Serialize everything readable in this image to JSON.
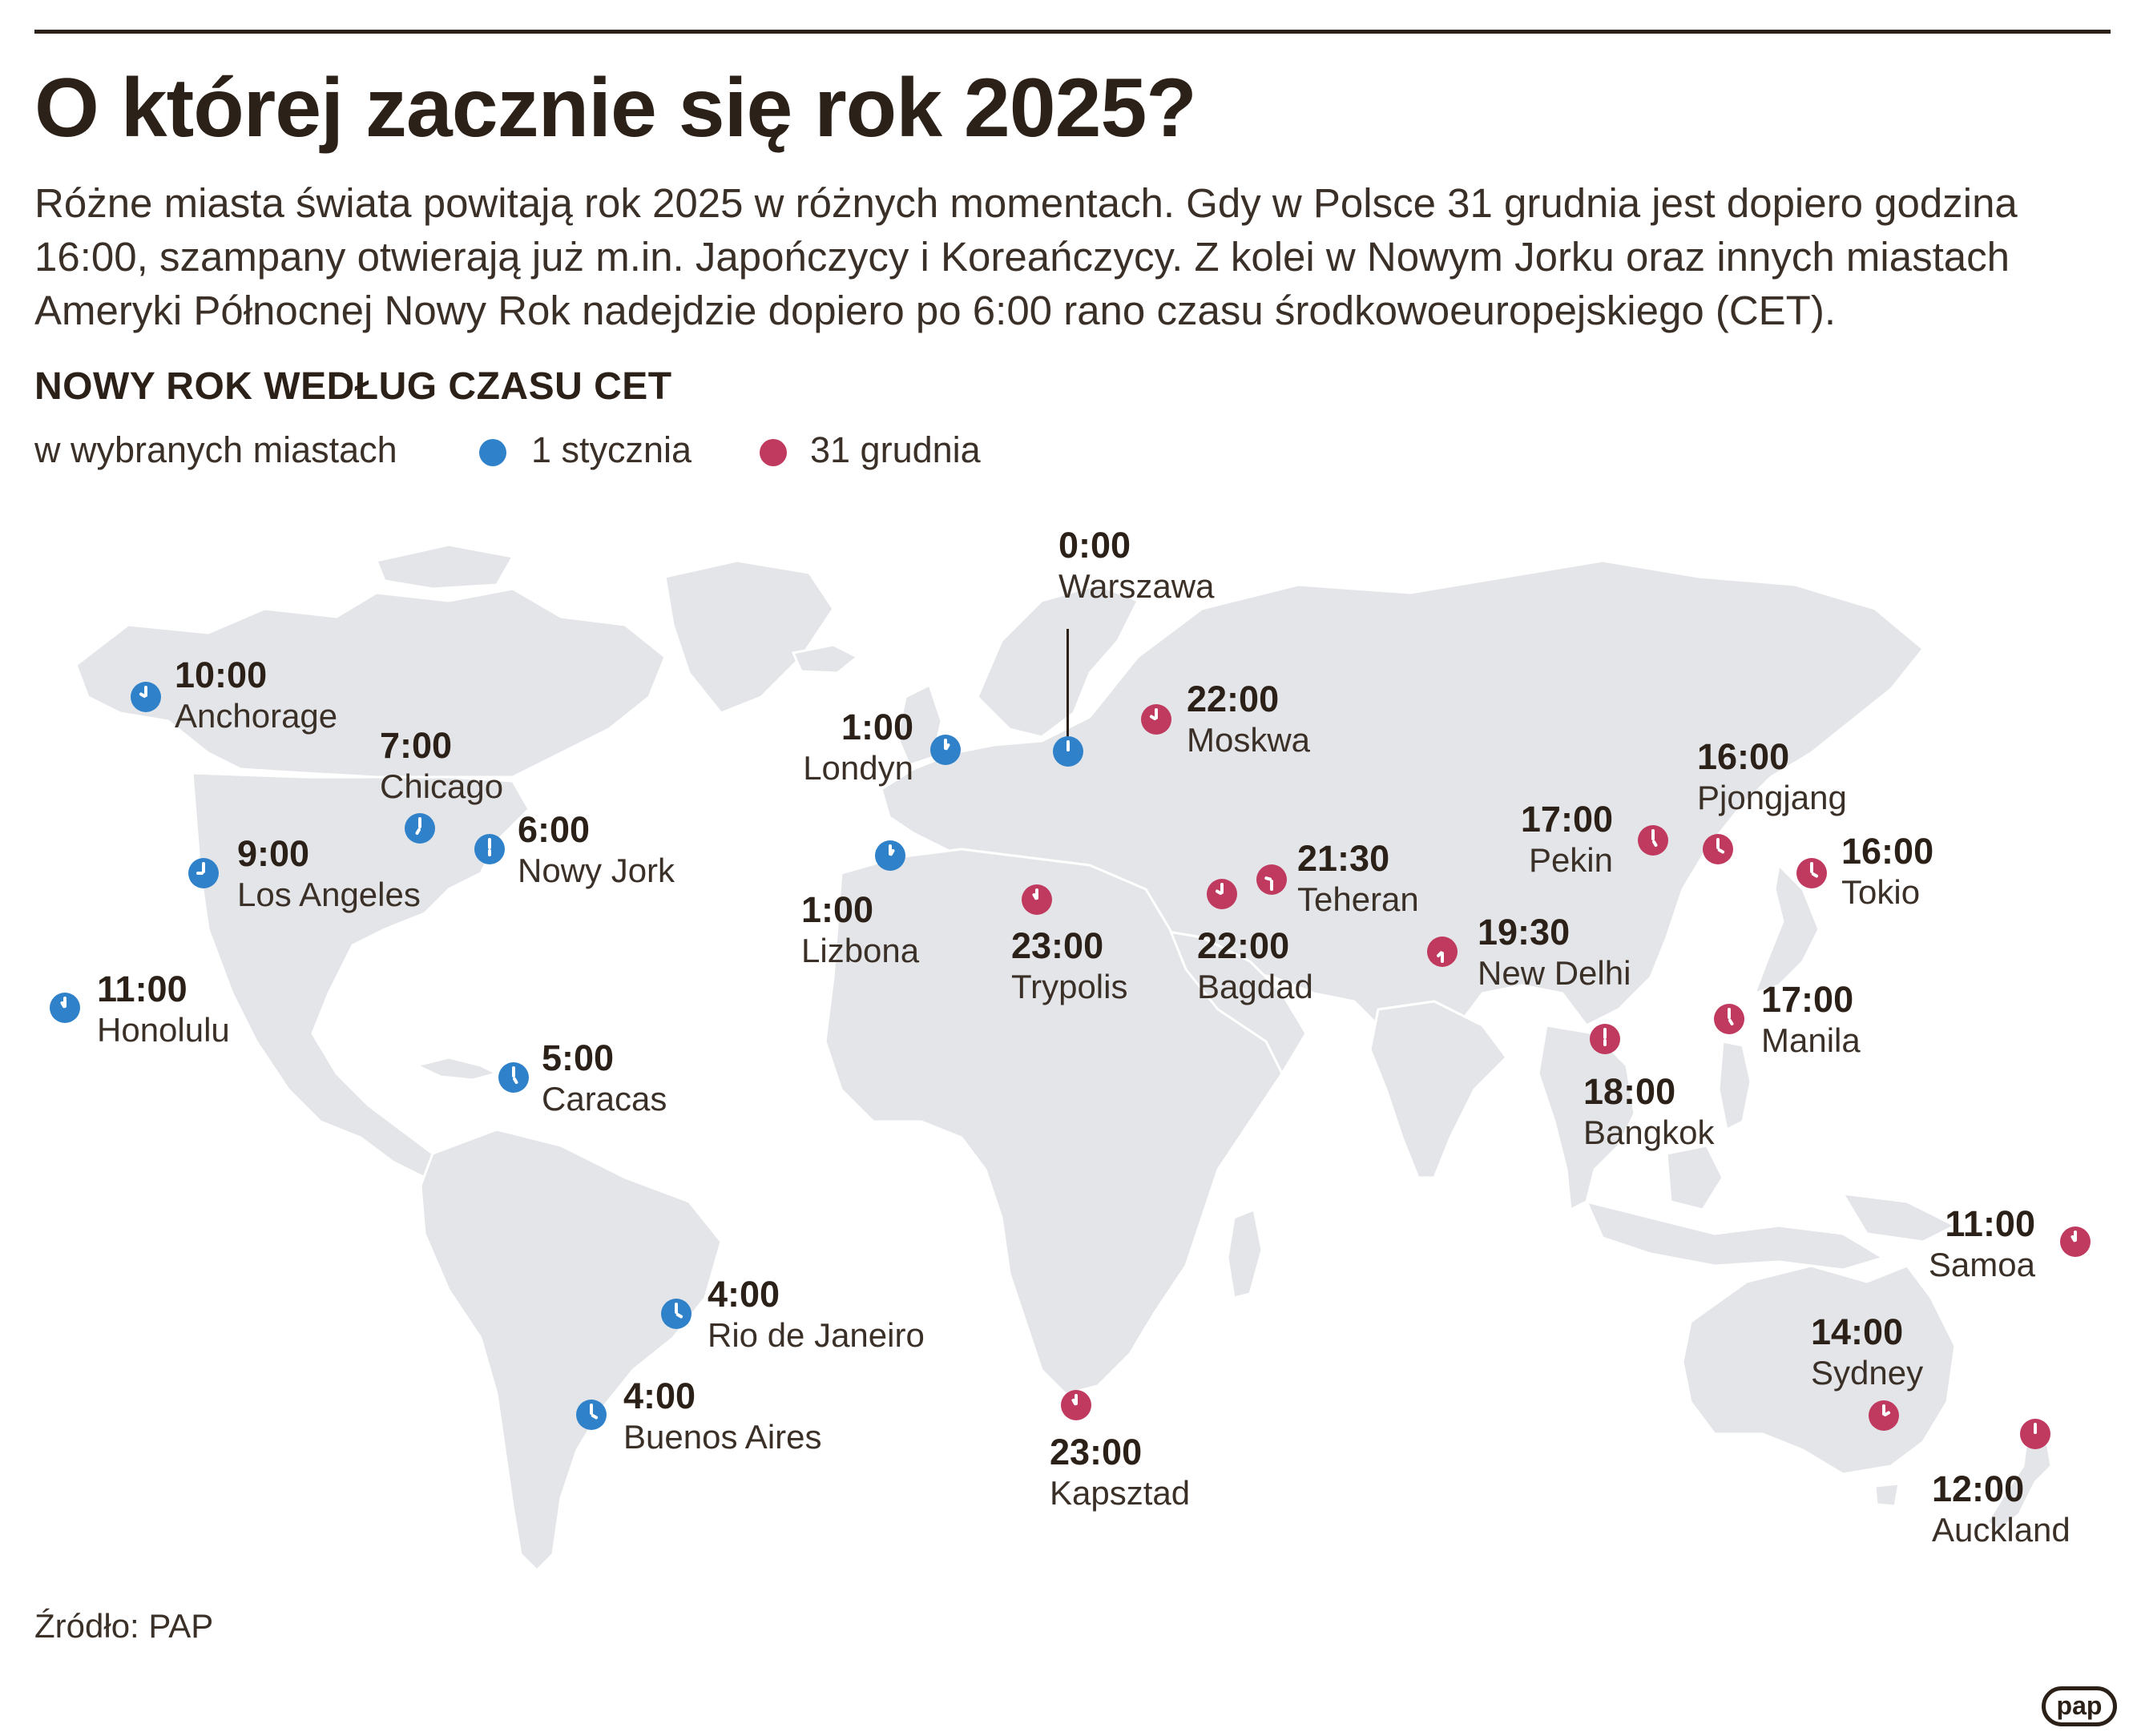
{
  "title": "O której zacznie się rok 2025?",
  "lead": "Różne miasta świata powitają rok 2025 w różnych momentach. Gdy w Polsce 31 grudnia jest dopiero godzina 16:00, szampany otwierają już m.in. Japończycy i Koreańczycy. Z kolei w Nowym Jorku oraz innych miastach Ameryki Północnej Nowy Rok nadejdzie dopiero po 6:00 rano czasu środkowoeuropejskiego (CET).",
  "subhead": "NOWY ROK WEDŁUG CZASU CET",
  "legend": {
    "caption": "w wybranych miastach",
    "jan_label": "1 stycznia",
    "dec_label": "31 grudnia"
  },
  "colors": {
    "jan": "#2f82c9",
    "dec": "#c0395f",
    "land": "#e3e5e8",
    "text": "#2b2118"
  },
  "cities": [
    {
      "name": "Warszawa",
      "time": "0:00",
      "day": "jan"
    },
    {
      "name": "Anchorage",
      "time": "10:00",
      "day": "jan"
    },
    {
      "name": "Chicago",
      "time": "7:00",
      "day": "jan"
    },
    {
      "name": "Nowy Jork",
      "time": "6:00",
      "day": "jan"
    },
    {
      "name": "Los Angeles",
      "time": "9:00",
      "day": "jan"
    },
    {
      "name": "Honolulu",
      "time": "11:00",
      "day": "jan"
    },
    {
      "name": "Caracas",
      "time": "5:00",
      "day": "jan"
    },
    {
      "name": "Rio de Janeiro",
      "time": "4:00",
      "day": "jan"
    },
    {
      "name": "Buenos Aires",
      "time": "4:00",
      "day": "jan"
    },
    {
      "name": "Londyn",
      "time": "1:00",
      "day": "jan"
    },
    {
      "name": "Lizbona",
      "time": "1:00",
      "day": "jan"
    },
    {
      "name": "Moskwa",
      "time": "22:00",
      "day": "dec"
    },
    {
      "name": "Trypolis",
      "time": "23:00",
      "day": "dec"
    },
    {
      "name": "Bagdad",
      "time": "22:00",
      "day": "dec"
    },
    {
      "name": "Teheran",
      "time": "21:30",
      "day": "dec"
    },
    {
      "name": "New Delhi",
      "time": "19:30",
      "day": "dec"
    },
    {
      "name": "Pekin",
      "time": "17:00",
      "day": "dec"
    },
    {
      "name": "Pjongjang",
      "time": "16:00",
      "day": "dec"
    },
    {
      "name": "Tokio",
      "time": "16:00",
      "day": "dec"
    },
    {
      "name": "Manila",
      "time": "17:00",
      "day": "dec"
    },
    {
      "name": "Bangkok",
      "time": "18:00",
      "day": "dec"
    },
    {
      "name": "Samoa",
      "time": "11:00",
      "day": "dec"
    },
    {
      "name": "Sydney",
      "time": "14:00",
      "day": "dec"
    },
    {
      "name": "Auckland",
      "time": "12:00",
      "day": "dec"
    },
    {
      "name": "Kapsztad",
      "time": "23:00",
      "day": "dec"
    }
  ],
  "source": "Źródło: PAP",
  "logo": "pap"
}
